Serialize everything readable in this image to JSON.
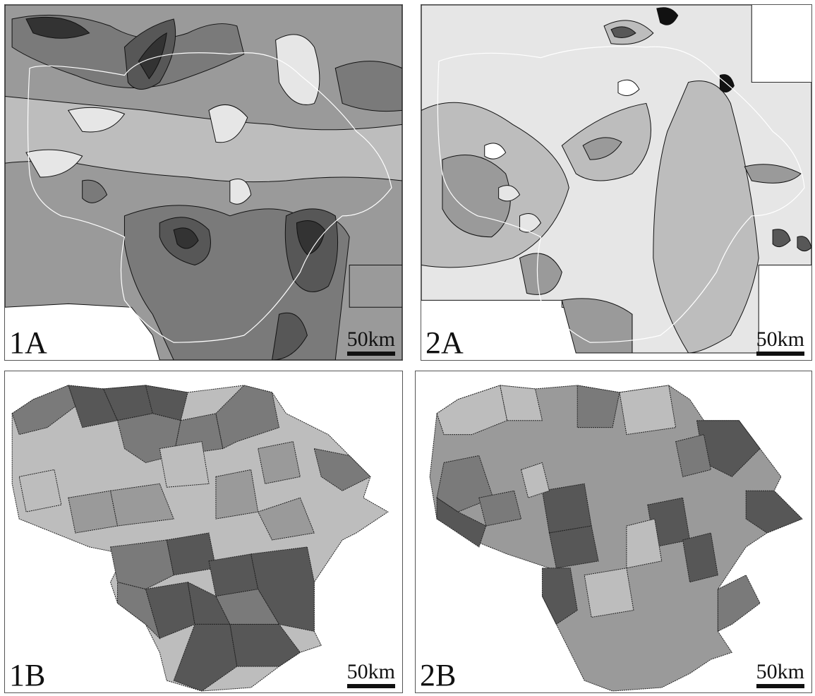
{
  "panels": [
    {
      "id": "1A",
      "label": "1A",
      "scale": "50km"
    },
    {
      "id": "2A",
      "label": "2A",
      "scale": "50km"
    },
    {
      "id": "1B",
      "label": "1B",
      "scale": "50km"
    },
    {
      "id": "2B",
      "label": "2B",
      "scale": "50km"
    }
  ],
  "colors": {
    "level1": "#e6e6e6",
    "level2": "#bdbdbd",
    "level3": "#9a9a9a",
    "level4": "#7a7a7a",
    "level5": "#575757",
    "level6": "#333333",
    "contour": "#111111",
    "border": "#ffffff"
  }
}
